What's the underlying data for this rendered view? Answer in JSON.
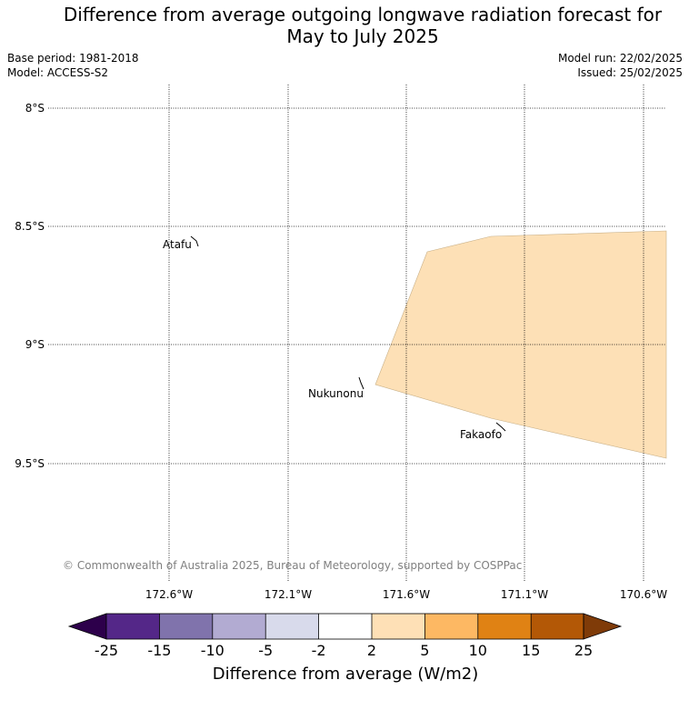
{
  "title_line1": "Difference from average outgoing longwave radiation forecast for",
  "title_line2": "May to July 2025",
  "base_period": "Base period: 1981-2018",
  "model": "Model: ACCESS-S2",
  "model_run": "Model run: 22/02/2025",
  "issued": "Issued: 25/02/2025",
  "latitudes": [
    "8°S",
    "8.5°S",
    "9°S",
    "9.5°S"
  ],
  "longitudes": [
    "172.6°W",
    "172.1°W",
    "171.6°W",
    "171.1°W",
    "170.6°W"
  ],
  "places": [
    "Atafu",
    "Nukunonu",
    "Fakaofo"
  ],
  "credit": "© Commonwealth of Australia 2025, Bureau of Meteorology, supported by COSPPac",
  "colorbar": {
    "label": "Difference from average (W/m2)",
    "ticks": [
      "-25",
      "-15",
      "-10",
      "-5",
      "-2",
      "2",
      "5",
      "10",
      "15",
      "25"
    ],
    "colors": {
      "below_min": "#2d004b",
      "bins": [
        "#542788",
        "#8073ac",
        "#b2abd2",
        "#d8daeb",
        "#ffffff",
        "#fee0b6",
        "#fdb863",
        "#e08214",
        "#b35806"
      ],
      "above_max": "#7f3b08"
    }
  },
  "shaded_region": {
    "category": "2 to 5",
    "color": "#fde0b6"
  }
}
